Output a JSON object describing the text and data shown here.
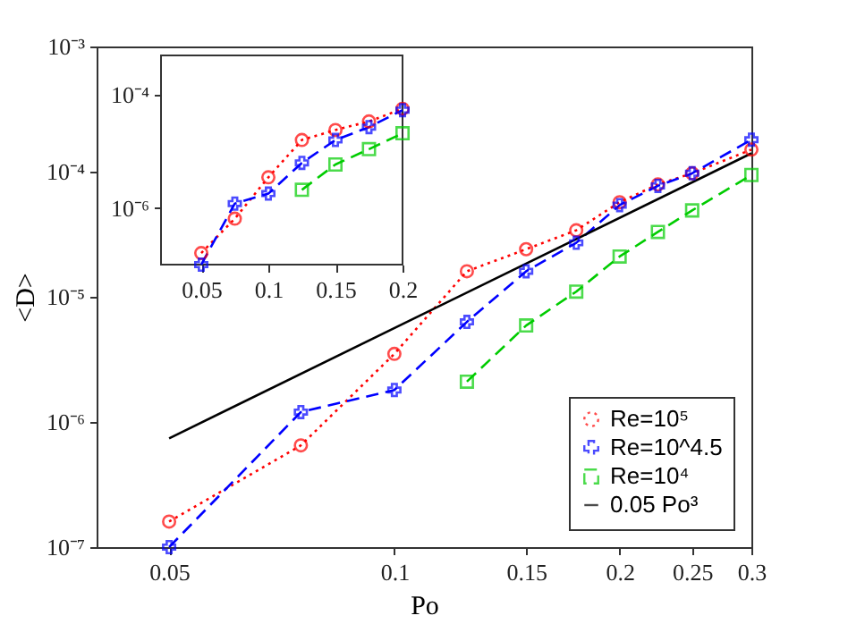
{
  "chart_data": [
    {
      "type": "line",
      "xlabel": "Po",
      "ylabel": "<D>",
      "log": "xy",
      "grid": false,
      "legend": "bottom right",
      "xlim": [
        0.04,
        0.3
      ],
      "xticks": [
        0.05,
        0.1,
        0.15,
        0.2,
        0.25,
        0.3
      ],
      "ylim": [
        1e-07,
        0.001
      ],
      "yticks": [
        {
          "value": 1e-07,
          "label": "10⁻⁷"
        },
        {
          "value": 1e-06,
          "label": "10⁻⁶"
        },
        {
          "value": 1e-05,
          "label": "10⁻⁵"
        },
        {
          "value": 0.0001,
          "label": "10⁻⁴"
        },
        {
          "value": 0.001,
          "label": "10⁻³"
        }
      ],
      "series": [
        {
          "name": "Re=10⁵",
          "color": "#ff0000",
          "marker": "circle",
          "line_style": "dotted",
          "x": [
            0.05,
            0.075,
            0.1,
            0.125,
            0.15,
            0.175,
            0.2,
            0.225,
            0.25,
            0.3
          ],
          "values": [
            1.6e-07,
            6.5e-07,
            3.5e-06,
            1.6e-05,
            2.4e-05,
            3.4e-05,
            5.7e-05,
            7.9e-05,
            9.7e-05,
            0.00015
          ]
        },
        {
          "name": "Re=10^4.5",
          "color": "#0000ff",
          "marker": "cross",
          "line_style": "dashed",
          "x": [
            0.05,
            0.075,
            0.1,
            0.125,
            0.15,
            0.175,
            0.2,
            0.225,
            0.25,
            0.3
          ],
          "values": [
            1e-07,
            1.2e-06,
            1.8e-06,
            6.3e-06,
            1.6e-05,
            2.7e-05,
            5.4e-05,
            7.7e-05,
            9.7e-05,
            0.00018
          ]
        },
        {
          "name": "Re=10⁴",
          "color": "#00cc00",
          "marker": "square",
          "line_style": "dashed",
          "x": [
            0.125,
            0.15,
            0.175,
            0.2,
            0.225,
            0.25,
            0.3
          ],
          "values": [
            2.1e-06,
            5.9e-06,
            1.1e-05,
            2.1e-05,
            3.3e-05,
            4.9e-05,
            9.4e-05
          ]
        },
        {
          "name": "0.05 Po³",
          "color": "#000000",
          "marker": "none",
          "line_style": "solid",
          "x": [
            0.05,
            0.3
          ],
          "values": [
            7.4e-07,
            0.00014
          ]
        }
      ]
    },
    {
      "type": "line",
      "log": "y",
      "grid": false,
      "xlim": [
        0.02,
        0.2
      ],
      "xticks": [
        0.05,
        0.1,
        0.15,
        0.2
      ],
      "ylim": [
        1e-07,
        0.0005
      ],
      "yticks": [
        {
          "value": 1e-06,
          "label": "10⁻⁶"
        },
        {
          "value": 0.0001,
          "label": "10⁻⁴"
        }
      ],
      "series": [
        {
          "color": "#ff0000",
          "marker": "circle",
          "line_style": "dotted",
          "x": [
            0.05,
            0.075,
            0.1,
            0.125,
            0.15,
            0.175,
            0.2
          ],
          "values": [
            1.6e-07,
            6.5e-07,
            3.5e-06,
            1.6e-05,
            2.4e-05,
            3.4e-05,
            5.7e-05
          ]
        },
        {
          "color": "#0000ff",
          "marker": "cross",
          "line_style": "dashed",
          "x": [
            0.05,
            0.075,
            0.1,
            0.125,
            0.15,
            0.175,
            0.2
          ],
          "values": [
            1e-07,
            1.2e-06,
            1.8e-06,
            6.3e-06,
            1.6e-05,
            2.7e-05,
            5.4e-05
          ]
        },
        {
          "color": "#00cc00",
          "marker": "square",
          "line_style": "dashed",
          "x": [
            0.125,
            0.15,
            0.175,
            0.2
          ],
          "values": [
            2.1e-06,
            5.9e-06,
            1.1e-05,
            2.1e-05
          ]
        }
      ]
    }
  ]
}
